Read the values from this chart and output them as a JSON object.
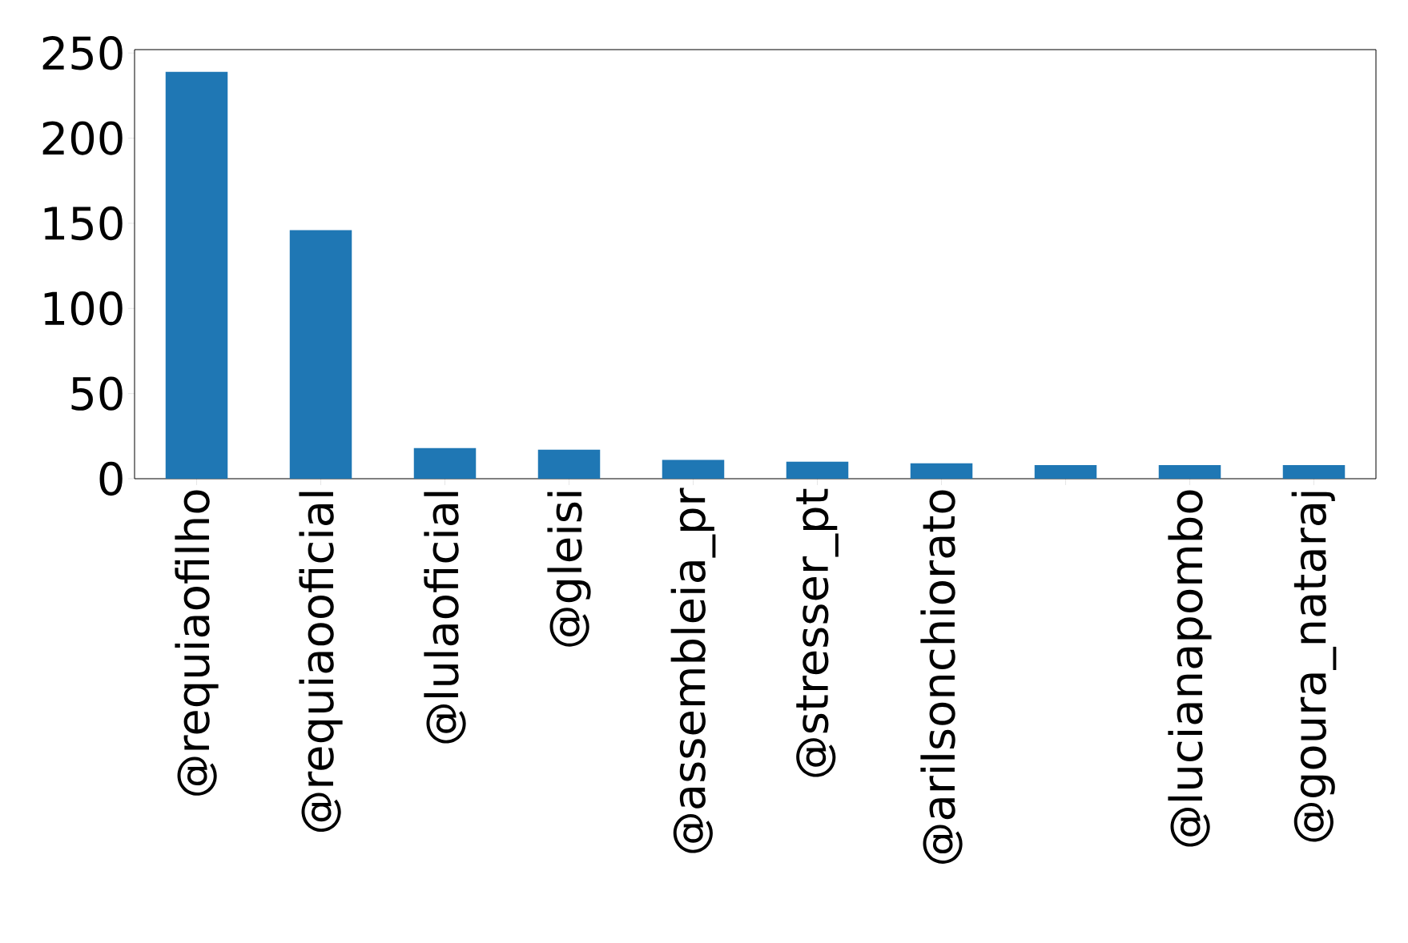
{
  "chart_data": {
    "type": "bar",
    "categories": [
      "@requiaofilho",
      "@requiaooficial",
      "@lulaoficial",
      "@gleisi",
      "@assembleia_pr",
      "@stresser_pt",
      "@arilsonchiorato",
      null,
      "@lucianapombo",
      "@goura_nataraj"
    ],
    "values": [
      239,
      146,
      18,
      17,
      11,
      10,
      9,
      8,
      8,
      8
    ],
    "color": "#1f77b4",
    "ylim": [
      0,
      252
    ],
    "yticks": [
      0,
      50,
      100,
      150,
      200,
      250
    ],
    "grid": false
  }
}
